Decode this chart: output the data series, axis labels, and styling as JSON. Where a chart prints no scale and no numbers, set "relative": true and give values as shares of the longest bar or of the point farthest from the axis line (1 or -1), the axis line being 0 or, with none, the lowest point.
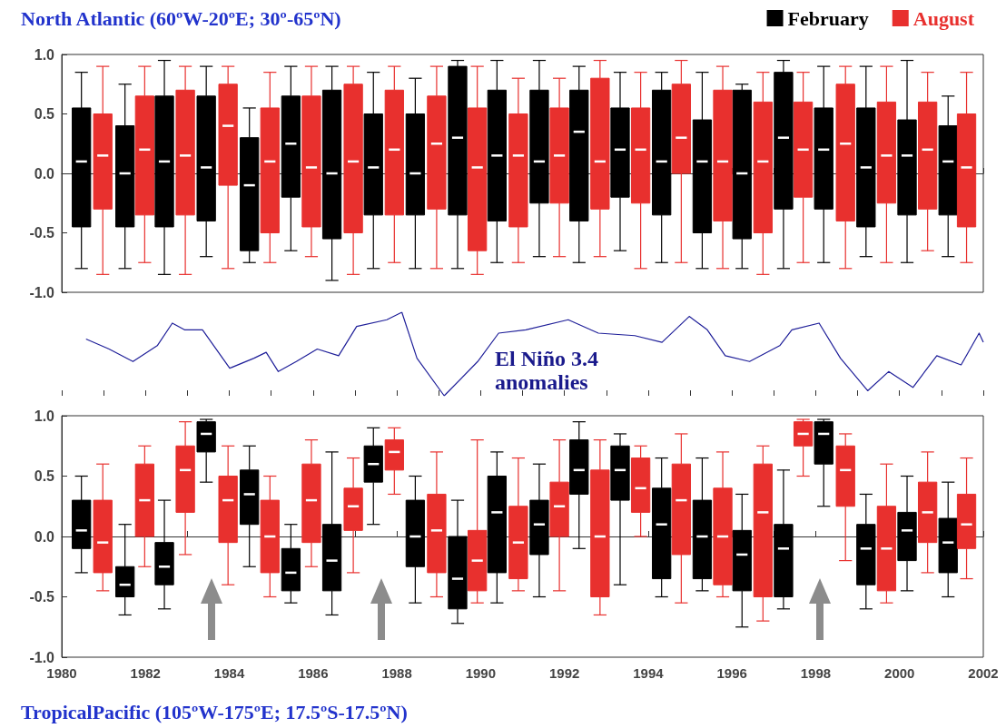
{
  "chart_data": [
    {
      "type": "box",
      "title": "North Atlantic (60ºW-20ºE; 30º-65ºN)",
      "legend": "top right",
      "tick_labels": "y",
      "xlim": [
        1980,
        2002
      ],
      "xticks": [
        {
          "value": 1980,
          "label": null
        },
        {
          "value": 1981,
          "label": null
        },
        {
          "value": 1982,
          "label": null
        },
        {
          "value": 1983,
          "label": null
        },
        {
          "value": 1984,
          "label": null
        },
        {
          "value": 1985,
          "label": null
        },
        {
          "value": 1986,
          "label": null
        },
        {
          "value": 1987,
          "label": null
        },
        {
          "value": 1988,
          "label": null
        },
        {
          "value": 1989,
          "label": null
        },
        {
          "value": 1990,
          "label": null
        },
        {
          "value": 1991,
          "label": null
        },
        {
          "value": 1992,
          "label": null
        },
        {
          "value": 1993,
          "label": null
        },
        {
          "value": 1994,
          "label": null
        },
        {
          "value": 1995,
          "label": null
        },
        {
          "value": 1996,
          "label": null
        },
        {
          "value": 1997,
          "label": null
        },
        {
          "value": 1998,
          "label": null
        },
        {
          "value": 1999,
          "label": null
        },
        {
          "value": 2000,
          "label": null
        },
        {
          "value": 2001,
          "label": null
        },
        {
          "value": 2002,
          "label": null
        }
      ],
      "ylim": [
        -1,
        1
      ],
      "yticks": [
        {
          "value": -1,
          "label": "-1.0"
        },
        {
          "value": -0.5,
          "label": "-0.5"
        },
        {
          "value": 0,
          "label": "0.0"
        },
        {
          "value": 0.5,
          "label": "0.5"
        },
        {
          "value": 1,
          "label": "1.0"
        }
      ],
      "series": [
        {
          "name": "February",
          "color": "#000000",
          "x": [
            1980.47,
            1981.51,
            1982.45,
            1983.45,
            1984.48,
            1985.47,
            1986.45,
            1987.44,
            1988.44,
            1989.45,
            1990.39,
            1991.4,
            1992.35,
            1993.33,
            1994.32,
            1995.29,
            1996.24,
            1997.23,
            1998.19,
            1999.2,
            2000.18,
            2001.16
          ],
          "boxes": [
            {
              "low": -0.8,
              "q1": -0.45,
              "median": 0.1,
              "q3": 0.55,
              "high": 0.85
            },
            {
              "low": -0.8,
              "q1": -0.45,
              "median": 0,
              "q3": 0.4,
              "high": 0.75
            },
            {
              "low": -0.85,
              "q1": -0.45,
              "median": 0.1,
              "q3": 0.65,
              "high": 0.95
            },
            {
              "low": -0.7,
              "q1": -0.4,
              "median": 0.05,
              "q3": 0.65,
              "high": 0.9
            },
            {
              "low": -0.75,
              "q1": -0.65,
              "median": -0.1,
              "q3": 0.3,
              "high": 0.55
            },
            {
              "low": -0.65,
              "q1": -0.2,
              "median": 0.25,
              "q3": 0.65,
              "high": 0.9
            },
            {
              "low": -0.9,
              "q1": -0.55,
              "median": 0,
              "q3": 0.7,
              "high": 0.9
            },
            {
              "low": -0.8,
              "q1": -0.35,
              "median": 0.05,
              "q3": 0.5,
              "high": 0.85
            },
            {
              "low": -0.8,
              "q1": -0.35,
              "median": 0,
              "q3": 0.5,
              "high": 0.8
            },
            {
              "low": -0.8,
              "q1": -0.35,
              "median": 0.3,
              "q3": 0.9,
              "high": 0.95
            },
            {
              "low": -0.75,
              "q1": -0.4,
              "median": 0.15,
              "q3": 0.7,
              "high": 0.95
            },
            {
              "low": -0.7,
              "q1": -0.25,
              "median": 0.1,
              "q3": 0.7,
              "high": 0.95
            },
            {
              "low": -0.75,
              "q1": -0.4,
              "median": 0.35,
              "q3": 0.7,
              "high": 0.9
            },
            {
              "low": -0.65,
              "q1": -0.2,
              "median": 0.2,
              "q3": 0.55,
              "high": 0.85
            },
            {
              "low": -0.75,
              "q1": -0.35,
              "median": 0.1,
              "q3": 0.7,
              "high": 0.85
            },
            {
              "low": -0.8,
              "q1": -0.5,
              "median": 0.1,
              "q3": 0.45,
              "high": 0.85
            },
            {
              "low": -0.8,
              "q1": -0.55,
              "median": 0,
              "q3": 0.7,
              "high": 0.75
            },
            {
              "low": -0.8,
              "q1": -0.3,
              "median": 0.3,
              "q3": 0.85,
              "high": 0.95
            },
            {
              "low": -0.75,
              "q1": -0.3,
              "median": 0.2,
              "q3": 0.55,
              "high": 0.9
            },
            {
              "low": -0.7,
              "q1": -0.45,
              "median": 0.05,
              "q3": 0.55,
              "high": 0.9
            },
            {
              "low": -0.75,
              "q1": -0.35,
              "median": 0.15,
              "q3": 0.45,
              "high": 0.95
            },
            {
              "low": -0.7,
              "q1": -0.35,
              "median": 0.1,
              "q3": 0.4,
              "high": 0.65
            }
          ]
        },
        {
          "name": "August",
          "color": "#e8302e",
          "x": [
            1980.98,
            1981.98,
            1982.95,
            1983.97,
            1984.97,
            1985.96,
            1986.96,
            1987.94,
            1988.95,
            1989.92,
            1990.9,
            1991.88,
            1992.85,
            1993.82,
            1994.79,
            1995.78,
            1996.74,
            1997.7,
            1998.71,
            1999.69,
            2000.67,
            2001.6
          ],
          "boxes": [
            {
              "low": -0.85,
              "q1": -0.3,
              "median": 0.15,
              "q3": 0.5,
              "high": 0.9
            },
            {
              "low": -0.75,
              "q1": -0.35,
              "median": 0.2,
              "q3": 0.65,
              "high": 0.9
            },
            {
              "low": -0.85,
              "q1": -0.35,
              "median": 0.15,
              "q3": 0.7,
              "high": 0.9
            },
            {
              "low": -0.8,
              "q1": -0.1,
              "median": 0.4,
              "q3": 0.75,
              "high": 0.9
            },
            {
              "low": -0.75,
              "q1": -0.5,
              "median": 0.1,
              "q3": 0.55,
              "high": 0.85
            },
            {
              "low": -0.7,
              "q1": -0.45,
              "median": 0.05,
              "q3": 0.65,
              "high": 0.9
            },
            {
              "low": -0.85,
              "q1": -0.5,
              "median": 0.1,
              "q3": 0.75,
              "high": 0.9
            },
            {
              "low": -0.75,
              "q1": -0.35,
              "median": 0.2,
              "q3": 0.7,
              "high": 0.9
            },
            {
              "low": -0.8,
              "q1": -0.3,
              "median": 0.25,
              "q3": 0.65,
              "high": 0.9
            },
            {
              "low": -0.85,
              "q1": -0.65,
              "median": 0.05,
              "q3": 0.55,
              "high": 0.9
            },
            {
              "low": -0.75,
              "q1": -0.45,
              "median": 0.15,
              "q3": 0.5,
              "high": 0.8
            },
            {
              "low": -0.7,
              "q1": -0.25,
              "median": 0.15,
              "q3": 0.55,
              "high": 0.8
            },
            {
              "low": -0.7,
              "q1": -0.3,
              "median": 0.1,
              "q3": 0.8,
              "high": 0.95
            },
            {
              "low": -0.8,
              "q1": -0.25,
              "median": 0.2,
              "q3": 0.55,
              "high": 0.85
            },
            {
              "low": -0.75,
              "q1": 0,
              "median": 0.3,
              "q3": 0.75,
              "high": 0.95
            },
            {
              "low": -0.8,
              "q1": -0.4,
              "median": 0.1,
              "q3": 0.7,
              "high": 0.9
            },
            {
              "low": -0.85,
              "q1": -0.5,
              "median": 0.1,
              "q3": 0.6,
              "high": 0.85
            },
            {
              "low": -0.75,
              "q1": -0.2,
              "median": 0.2,
              "q3": 0.6,
              "high": 0.85
            },
            {
              "low": -0.8,
              "q1": -0.4,
              "median": 0.25,
              "q3": 0.75,
              "high": 0.9
            },
            {
              "low": -0.75,
              "q1": -0.25,
              "median": 0.15,
              "q3": 0.6,
              "high": 0.9
            },
            {
              "low": -0.65,
              "q1": -0.3,
              "median": 0.2,
              "q3": 0.6,
              "high": 0.85
            },
            {
              "low": -0.75,
              "q1": -0.45,
              "median": 0.05,
              "q3": 0.5,
              "high": 0.85
            }
          ]
        }
      ]
    },
    {
      "type": "line",
      "relative": true,
      "tick_labels": false,
      "xlim": [
        1980,
        2002
      ],
      "xticks": [
        {
          "value": 1980,
          "label": null
        },
        {
          "value": 1981,
          "label": null
        },
        {
          "value": 1982,
          "label": null
        },
        {
          "value": 1983,
          "label": null
        },
        {
          "value": 1984,
          "label": null
        },
        {
          "value": 1985,
          "label": null
        },
        {
          "value": 1986,
          "label": null
        },
        {
          "value": 1987,
          "label": null
        },
        {
          "value": 1988,
          "label": null
        },
        {
          "value": 1989,
          "label": null
        },
        {
          "value": 1990,
          "label": null
        },
        {
          "value": 1991,
          "label": null
        },
        {
          "value": 1992,
          "label": null
        },
        {
          "value": 1993,
          "label": null
        },
        {
          "value": 1994,
          "label": null
        },
        {
          "value": 1995,
          "label": null
        },
        {
          "value": 1996,
          "label": null
        },
        {
          "value": 1997,
          "label": null
        },
        {
          "value": 1998,
          "label": null
        },
        {
          "value": 1999,
          "label": null
        },
        {
          "value": 2000,
          "label": null
        },
        {
          "value": 2001,
          "label": null
        },
        {
          "value": 2002,
          "label": null
        }
      ],
      "annotations": [
        "El Niño 3.4 anomalies"
      ],
      "series": [
        {
          "color": "#1f1f99",
          "x": [
            1980.58,
            1981.13,
            1981.7,
            1982.28,
            1982.64,
            1982.93,
            1983.36,
            1984.01,
            1984.59,
            1984.88,
            1985.17,
            1985.6,
            1986.1,
            1986.61,
            1987.04,
            1987.76,
            1988.12,
            1988.48,
            1989.13,
            1989.93,
            1990.43,
            1991.08,
            1992.09,
            1992.81,
            1993.68,
            1994.33,
            1994.98,
            1995.41,
            1995.84,
            1996.42,
            1997.14,
            1997.43,
            1998.08,
            1998.59,
            1999.24,
            1999.74,
            2000.32,
            2000.89,
            2001.47,
            2001.9,
            2002
          ],
          "values": [
            0.68,
            0.56,
            0.41,
            0.6,
            0.87,
            0.79,
            0.79,
            0.33,
            0.45,
            0.52,
            0.29,
            0.41,
            0.56,
            0.48,
            0.83,
            0.91,
            1,
            0.45,
            0,
            0.41,
            0.75,
            0.79,
            0.91,
            0.75,
            0.72,
            0.64,
            0.95,
            0.79,
            0.48,
            0.41,
            0.6,
            0.79,
            0.87,
            0.45,
            0.06,
            0.29,
            0.1,
            0.48,
            0.37,
            0.75,
            0.64
          ]
        }
      ]
    },
    {
      "type": "box",
      "title": "TropicalPacific (105ºW-175ºE; 17.5ºS-17.5ºN)",
      "xlim": [
        1980,
        2002
      ],
      "xticks": [
        1980,
        {
          "value": 1981,
          "label": null
        },
        1982,
        {
          "value": 1983,
          "label": null
        },
        1984,
        {
          "value": 1985,
          "label": null
        },
        1986,
        {
          "value": 1987,
          "label": null
        },
        1988,
        {
          "value": 1989,
          "label": null
        },
        1990,
        {
          "value": 1991,
          "label": null
        },
        1992,
        {
          "value": 1993,
          "label": null
        },
        1994,
        {
          "value": 1995,
          "label": null
        },
        1996,
        {
          "value": 1997,
          "label": null
        },
        1998,
        {
          "value": 1999,
          "label": null
        },
        2000,
        {
          "value": 2001,
          "label": null
        },
        2002
      ],
      "ylim": [
        -1,
        1
      ],
      "yticks": [
        {
          "value": -1,
          "label": "-1.0"
        },
        {
          "value": -0.5,
          "label": "-0.5"
        },
        {
          "value": 0,
          "label": "0.0"
        },
        {
          "value": 0.5,
          "label": "0.5"
        },
        {
          "value": 1,
          "label": "1.0"
        }
      ],
      "series": [
        {
          "color": "#000000",
          "x": [
            1980.47,
            1981.51,
            1982.45,
            1983.45,
            1984.48,
            1985.47,
            1986.45,
            1987.44,
            1988.44,
            1989.45,
            1990.39,
            1991.4,
            1992.35,
            1993.33,
            1994.32,
            1995.29,
            1996.24,
            1997.23,
            1998.19,
            1999.2,
            2000.18,
            2001.16
          ],
          "boxes": [
            {
              "low": -0.3,
              "q1": -0.1,
              "median": 0.05,
              "q3": 0.3,
              "high": 0.5
            },
            {
              "low": -0.65,
              "q1": -0.5,
              "median": -0.4,
              "q3": -0.25,
              "high": 0.1
            },
            {
              "low": -0.6,
              "q1": -0.4,
              "median": -0.25,
              "q3": -0.05,
              "high": 0.3
            },
            {
              "low": 0.45,
              "q1": 0.7,
              "median": 0.85,
              "q3": 0.95,
              "high": 0.97
            },
            {
              "low": -0.25,
              "q1": 0.1,
              "median": 0.35,
              "q3": 0.55,
              "high": 0.75
            },
            {
              "low": -0.55,
              "q1": -0.45,
              "median": -0.3,
              "q3": -0.1,
              "high": 0.1
            },
            {
              "low": -0.65,
              "q1": -0.45,
              "median": -0.2,
              "q3": 0.1,
              "high": 0.7
            },
            {
              "low": 0.1,
              "q1": 0.45,
              "median": 0.6,
              "q3": 0.75,
              "high": 0.9
            },
            {
              "low": -0.55,
              "q1": -0.25,
              "median": 0,
              "q3": 0.3,
              "high": 0.5
            },
            {
              "low": -0.72,
              "q1": -0.6,
              "median": -0.35,
              "q3": 0,
              "high": 0.3
            },
            {
              "low": -0.55,
              "q1": -0.3,
              "median": 0.2,
              "q3": 0.5,
              "high": 0.7
            },
            {
              "low": -0.5,
              "q1": -0.15,
              "median": 0.1,
              "q3": 0.3,
              "high": 0.6
            },
            {
              "low": -0.1,
              "q1": 0.35,
              "median": 0.55,
              "q3": 0.8,
              "high": 0.95
            },
            {
              "low": -0.4,
              "q1": 0.3,
              "median": 0.55,
              "q3": 0.75,
              "high": 0.85
            },
            {
              "low": -0.5,
              "q1": -0.35,
              "median": 0.1,
              "q3": 0.4,
              "high": 0.65
            },
            {
              "low": -0.45,
              "q1": -0.35,
              "median": 0,
              "q3": 0.3,
              "high": 0.65
            },
            {
              "low": -0.75,
              "q1": -0.45,
              "median": -0.15,
              "q3": 0.05,
              "high": 0.35
            },
            {
              "low": -0.6,
              "q1": -0.5,
              "median": -0.1,
              "q3": 0.1,
              "high": 0.55
            },
            {
              "low": 0.25,
              "q1": 0.6,
              "median": 0.85,
              "q3": 0.95,
              "high": 0.97
            },
            {
              "low": -0.6,
              "q1": -0.4,
              "median": -0.1,
              "q3": 0.1,
              "high": 0.35
            },
            {
              "low": -0.45,
              "q1": -0.2,
              "median": 0.05,
              "q3": 0.2,
              "high": 0.5
            },
            {
              "low": -0.5,
              "q1": -0.3,
              "median": -0.05,
              "q3": 0.15,
              "high": 0.45
            }
          ]
        },
        {
          "color": "#e8302e",
          "x": [
            1980.98,
            1981.98,
            1982.95,
            1983.97,
            1984.97,
            1985.96,
            1986.96,
            1987.94,
            1988.95,
            1989.92,
            1990.9,
            1991.88,
            1992.85,
            1993.82,
            1994.79,
            1995.78,
            1996.74,
            1997.7,
            1998.71,
            1999.69,
            2000.67,
            2001.6
          ],
          "boxes": [
            {
              "low": -0.45,
              "q1": -0.3,
              "median": -0.05,
              "q3": 0.3,
              "high": 0.6
            },
            {
              "low": -0.25,
              "q1": 0,
              "median": 0.3,
              "q3": 0.6,
              "high": 0.75
            },
            {
              "low": -0.15,
              "q1": 0.2,
              "median": 0.55,
              "q3": 0.75,
              "high": 0.95
            },
            {
              "low": -0.4,
              "q1": -0.05,
              "median": 0.3,
              "q3": 0.5,
              "high": 0.75
            },
            {
              "low": -0.5,
              "q1": -0.3,
              "median": 0,
              "q3": 0.3,
              "high": 0.5
            },
            {
              "low": -0.25,
              "q1": -0.05,
              "median": 0.3,
              "q3": 0.6,
              "high": 0.8
            },
            {
              "low": -0.3,
              "q1": 0.05,
              "median": 0.25,
              "q3": 0.4,
              "high": 0.65
            },
            {
              "low": 0.35,
              "q1": 0.55,
              "median": 0.7,
              "q3": 0.8,
              "high": 0.9
            },
            {
              "low": -0.5,
              "q1": -0.3,
              "median": 0.05,
              "q3": 0.35,
              "high": 0.7
            },
            {
              "low": -0.55,
              "q1": -0.45,
              "median": -0.2,
              "q3": 0.05,
              "high": 0.8
            },
            {
              "low": -0.45,
              "q1": -0.35,
              "median": -0.05,
              "q3": 0.25,
              "high": 0.65
            },
            {
              "low": -0.45,
              "q1": 0,
              "median": 0.25,
              "q3": 0.45,
              "high": 0.8
            },
            {
              "low": -0.65,
              "q1": -0.5,
              "median": 0,
              "q3": 0.55,
              "high": 0.8
            },
            {
              "low": 0,
              "q1": 0.2,
              "median": 0.4,
              "q3": 0.65,
              "high": 0.75
            },
            {
              "low": -0.55,
              "q1": -0.15,
              "median": 0.3,
              "q3": 0.6,
              "high": 0.85
            },
            {
              "low": -0.5,
              "q1": -0.4,
              "median": 0,
              "q3": 0.4,
              "high": 0.7
            },
            {
              "low": -0.7,
              "q1": -0.5,
              "median": 0.2,
              "q3": 0.6,
              "high": 0.75
            },
            {
              "low": 0.5,
              "q1": 0.75,
              "median": 0.85,
              "q3": 0.95,
              "high": 0.97
            },
            {
              "low": -0.2,
              "q1": 0.25,
              "median": 0.55,
              "q3": 0.75,
              "high": 0.85
            },
            {
              "low": -0.55,
              "q1": -0.45,
              "median": -0.1,
              "q3": 0.25,
              "high": 0.6
            },
            {
              "low": -0.3,
              "q1": -0.05,
              "median": 0.2,
              "q3": 0.45,
              "high": 0.7
            },
            {
              "low": -0.35,
              "q1": -0.1,
              "median": 0.1,
              "q3": 0.35,
              "high": 0.65
            }
          ]
        }
      ]
    }
  ]
}
